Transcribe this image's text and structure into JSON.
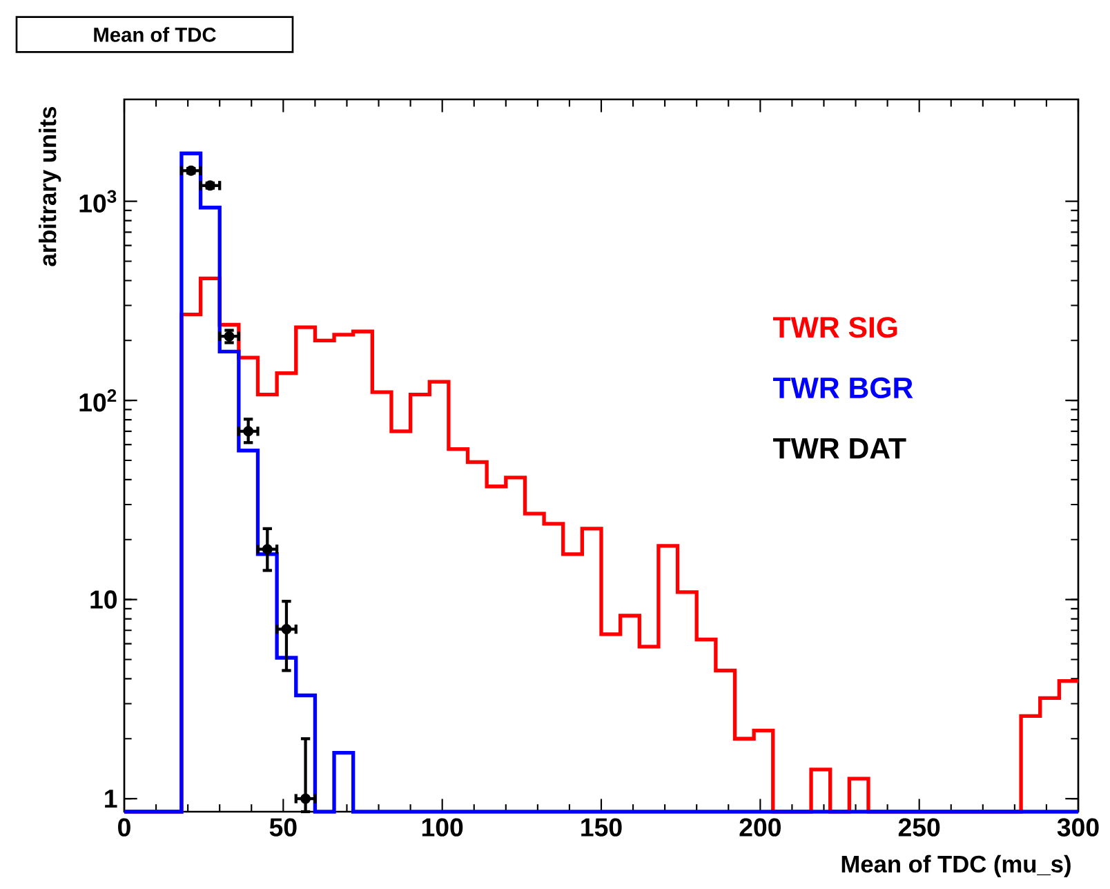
{
  "chart_data": {
    "type": "histogram",
    "title": "Mean of TDC",
    "xlabel": "Mean of TDC (mu_s)",
    "ylabel": "arbitrary units",
    "bins": [
      0,
      6,
      12,
      18,
      24,
      30,
      36,
      42,
      48,
      54,
      60,
      66,
      72,
      78,
      84,
      90,
      96,
      102,
      108,
      114,
      120,
      126,
      132,
      138,
      144,
      150,
      156,
      162,
      168,
      174,
      180,
      186,
      192,
      198,
      204,
      210,
      216,
      222,
      228,
      234,
      240,
      246,
      252,
      258,
      264,
      270,
      276,
      282,
      288,
      294,
      300
    ],
    "series": [
      {
        "name": "TWR SIG",
        "color": "#ff0000",
        "values": [
          null,
          null,
          null,
          270,
          410,
          240,
          164,
          107,
          137,
          233,
          200,
          214,
          222,
          110,
          70,
          107,
          124,
          57,
          49,
          37,
          41,
          27,
          24,
          16.9,
          22.7,
          6.7,
          8.3,
          5.8,
          18.6,
          10.9,
          6.3,
          4.4,
          2.0,
          2.2,
          null,
          null,
          1.4,
          null,
          1.26,
          null,
          null,
          null,
          null,
          null,
          null,
          null,
          null,
          2.6,
          3.2,
          3.9
        ]
      },
      {
        "name": "TWR BGR",
        "color": "#0000ff",
        "values": [
          null,
          null,
          null,
          1740,
          930,
          176,
          56,
          16.9,
          5.1,
          3.3,
          null,
          1.7,
          null,
          null,
          null,
          null,
          null,
          null,
          null,
          null,
          null,
          null,
          null,
          null,
          null,
          null,
          null,
          null,
          null,
          null,
          null,
          null,
          null,
          null,
          null,
          null,
          null,
          null,
          null,
          null,
          null,
          null,
          null,
          null,
          null,
          null,
          null,
          null,
          null,
          null
        ]
      },
      {
        "name": "TWR DAT",
        "color": "#000000",
        "type": "scatter",
        "x": [
          21,
          27,
          33,
          39,
          45,
          51,
          57
        ],
        "values": [
          1425,
          1200,
          210,
          70,
          17.9,
          7.1,
          1.0
        ],
        "errors": [
          38,
          35,
          15,
          [
            61.4,
            80.5
          ],
          [
            14.0,
            22.7
          ],
          [
            4.4,
            9.8
          ],
          [
            0.86,
            2.0
          ]
        ],
        "xerrors": [
          3,
          3,
          3,
          3,
          3,
          3,
          3
        ]
      }
    ],
    "xlim": [
      0,
      300
    ],
    "ylim": [
      0.86,
      3250
    ],
    "log": "y",
    "xticks": [
      0,
      50,
      100,
      150,
      200,
      250,
      300
    ],
    "yticks": [
      1,
      10,
      {
        "value": 100,
        "label": "10$^{2}$"
      },
      {
        "value": 1000,
        "label": "10$^{3}$"
      }
    ],
    "legend": "right"
  }
}
